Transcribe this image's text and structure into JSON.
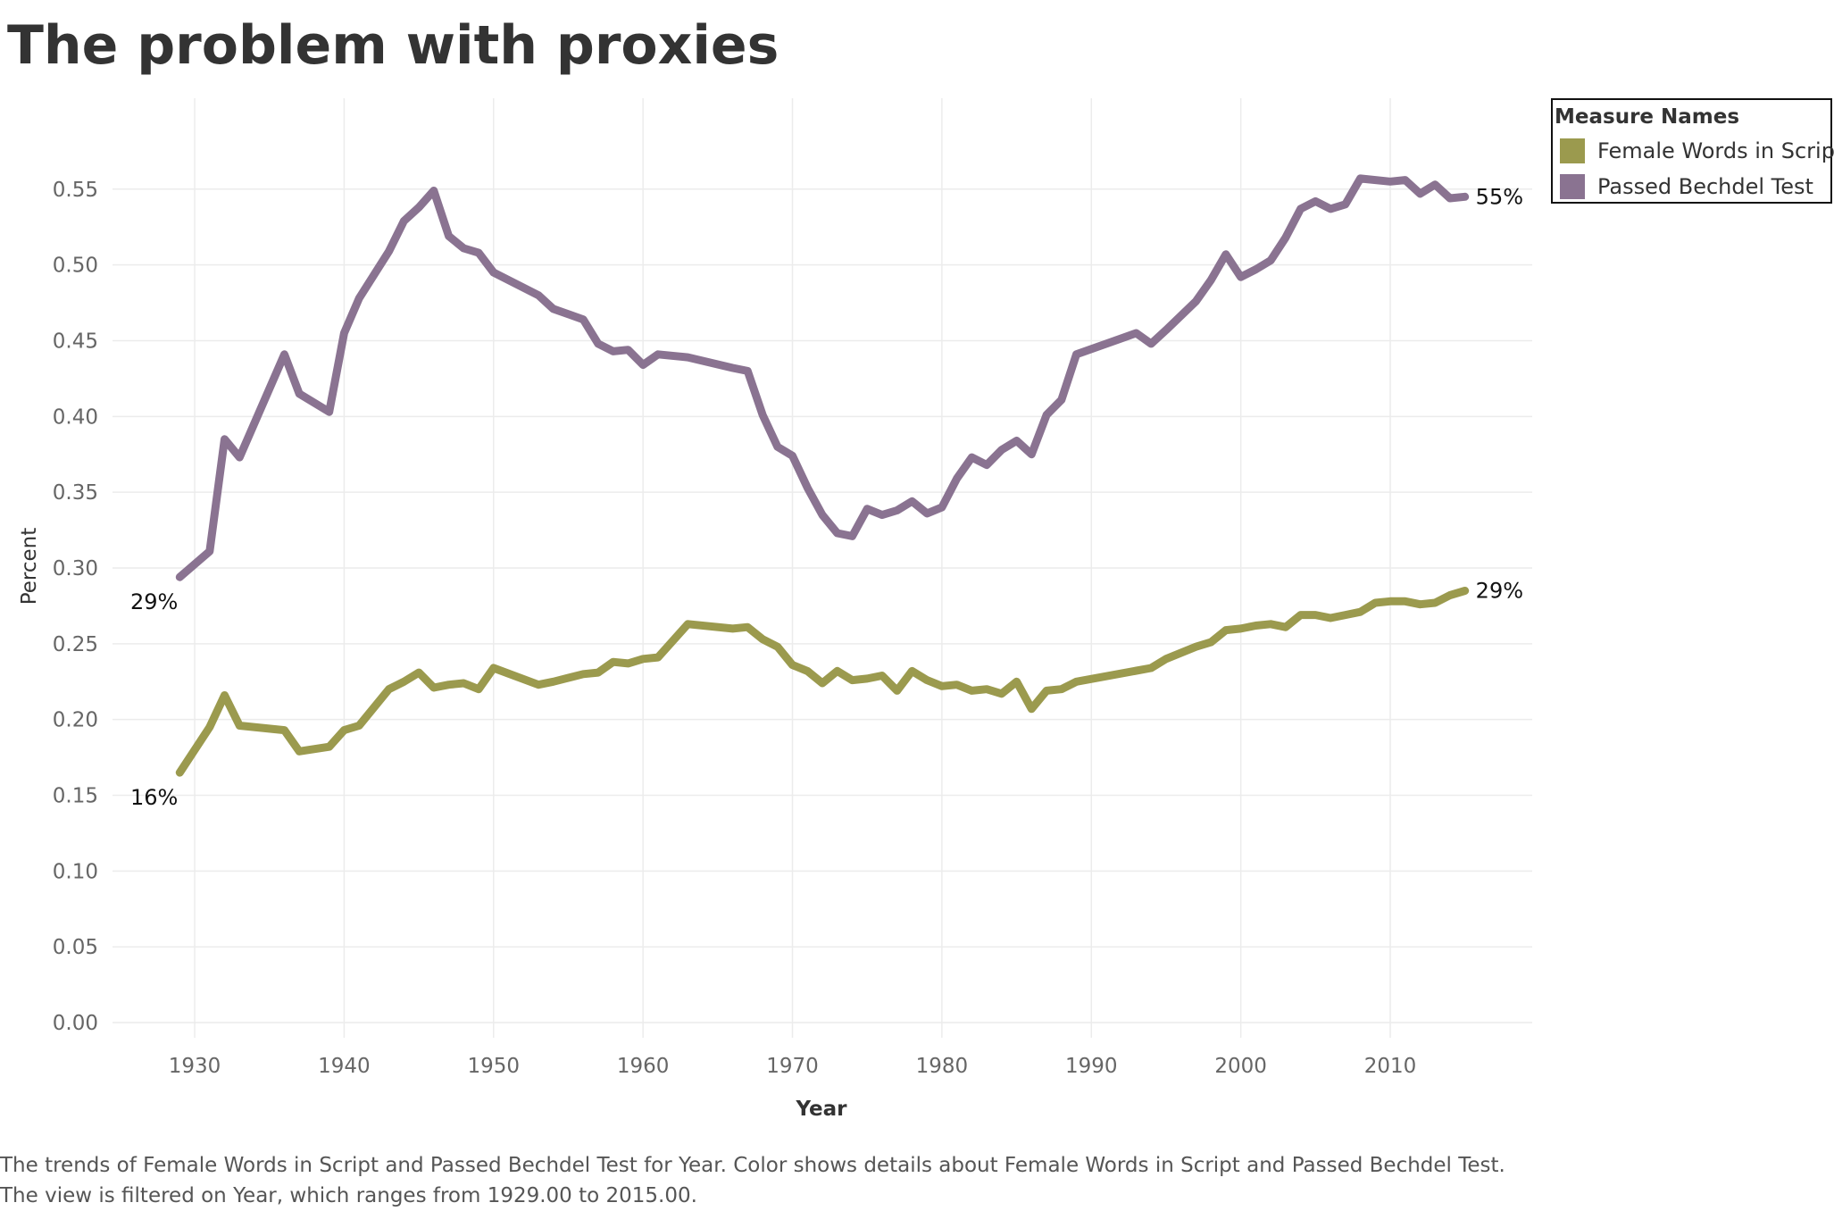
{
  "title": "The problem with proxies",
  "caption": "The trends of Female Words in Script and Passed Bechdel Test for Year.  Color shows details about Female Words in Script and Passed Bechdel Test. The view is filtered on Year, which ranges from 1929.00 to 2015.00.",
  "legend": {
    "title": "Measure Names",
    "items": [
      {
        "label": "Female Words in Script",
        "color": "#9b9a4e"
      },
      {
        "label": "Passed Bechdel Test",
        "color": "#8a7391"
      }
    ]
  },
  "chart_data": {
    "type": "line",
    "xlabel": "Year",
    "ylabel": "Percent",
    "xlim": [
      1924.5,
      2019.5
    ],
    "ylim": [
      -0.01,
      0.61
    ],
    "x_ticks": [
      "1930",
      "1940",
      "1950",
      "1960",
      "1970",
      "1980",
      "1990",
      "2000",
      "2010"
    ],
    "y_ticks": [
      "0.00",
      "0.05",
      "0.10",
      "0.15",
      "0.20",
      "0.25",
      "0.30",
      "0.35",
      "0.40",
      "0.45",
      "0.50",
      "0.55"
    ],
    "grid": true,
    "legend_position": "top-right",
    "series": [
      {
        "name": "Female Words in Script",
        "color": "#9b9a4e",
        "start_label": "16%",
        "end_label": "29%",
        "points": [
          [
            1929,
            0.165
          ],
          [
            1931,
            0.195
          ],
          [
            1932,
            0.216
          ],
          [
            1933,
            0.196
          ],
          [
            1936,
            0.193
          ],
          [
            1937,
            0.179
          ],
          [
            1939,
            0.182
          ],
          [
            1940,
            0.193
          ],
          [
            1941,
            0.196
          ],
          [
            1943,
            0.22
          ],
          [
            1944,
            0.225
          ],
          [
            1945,
            0.231
          ],
          [
            1946,
            0.221
          ],
          [
            1947,
            0.223
          ],
          [
            1948,
            0.224
          ],
          [
            1949,
            0.22
          ],
          [
            1950,
            0.234
          ],
          [
            1953,
            0.223
          ],
          [
            1954,
            0.225
          ],
          [
            1956,
            0.23
          ],
          [
            1957,
            0.231
          ],
          [
            1958,
            0.238
          ],
          [
            1959,
            0.237
          ],
          [
            1960,
            0.24
          ],
          [
            1961,
            0.241
          ],
          [
            1963,
            0.263
          ],
          [
            1966,
            0.26
          ],
          [
            1967,
            0.261
          ],
          [
            1968,
            0.253
          ],
          [
            1969,
            0.248
          ],
          [
            1970,
            0.236
          ],
          [
            1971,
            0.232
          ],
          [
            1972,
            0.224
          ],
          [
            1973,
            0.232
          ],
          [
            1974,
            0.226
          ],
          [
            1975,
            0.227
          ],
          [
            1976,
            0.229
          ],
          [
            1977,
            0.219
          ],
          [
            1978,
            0.232
          ],
          [
            1979,
            0.226
          ],
          [
            1980,
            0.222
          ],
          [
            1981,
            0.223
          ],
          [
            1982,
            0.219
          ],
          [
            1983,
            0.22
          ],
          [
            1984,
            0.217
          ],
          [
            1985,
            0.225
          ],
          [
            1986,
            0.207
          ],
          [
            1987,
            0.219
          ],
          [
            1988,
            0.22
          ],
          [
            1989,
            0.225
          ],
          [
            1994,
            0.234
          ],
          [
            1995,
            0.24
          ],
          [
            1997,
            0.248
          ],
          [
            1998,
            0.251
          ],
          [
            1999,
            0.259
          ],
          [
            2000,
            0.26
          ],
          [
            2001,
            0.262
          ],
          [
            2002,
            0.263
          ],
          [
            2003,
            0.261
          ],
          [
            2004,
            0.269
          ],
          [
            2005,
            0.269
          ],
          [
            2006,
            0.267
          ],
          [
            2007,
            0.269
          ],
          [
            2008,
            0.271
          ],
          [
            2009,
            0.277
          ],
          [
            2010,
            0.278
          ],
          [
            2011,
            0.278
          ],
          [
            2012,
            0.276
          ],
          [
            2013,
            0.277
          ],
          [
            2014,
            0.282
          ],
          [
            2015,
            0.285
          ]
        ]
      },
      {
        "name": "Passed Bechdel Test",
        "color": "#8a7391",
        "start_label": "29%",
        "end_label": "55%",
        "points": [
          [
            1929,
            0.294
          ],
          [
            1931,
            0.311
          ],
          [
            1932,
            0.385
          ],
          [
            1933,
            0.373
          ],
          [
            1936,
            0.441
          ],
          [
            1937,
            0.415
          ],
          [
            1939,
            0.403
          ],
          [
            1940,
            0.455
          ],
          [
            1941,
            0.478
          ],
          [
            1943,
            0.509
          ],
          [
            1944,
            0.529
          ],
          [
            1945,
            0.538
          ],
          [
            1946,
            0.549
          ],
          [
            1947,
            0.519
          ],
          [
            1948,
            0.511
          ],
          [
            1949,
            0.508
          ],
          [
            1950,
            0.495
          ],
          [
            1953,
            0.48
          ],
          [
            1954,
            0.471
          ],
          [
            1956,
            0.464
          ],
          [
            1957,
            0.448
          ],
          [
            1958,
            0.443
          ],
          [
            1959,
            0.444
          ],
          [
            1960,
            0.434
          ],
          [
            1961,
            0.441
          ],
          [
            1963,
            0.439
          ],
          [
            1966,
            0.432
          ],
          [
            1967,
            0.43
          ],
          [
            1968,
            0.401
          ],
          [
            1969,
            0.38
          ],
          [
            1970,
            0.374
          ],
          [
            1971,
            0.353
          ],
          [
            1972,
            0.335
          ],
          [
            1973,
            0.323
          ],
          [
            1974,
            0.321
          ],
          [
            1975,
            0.339
          ],
          [
            1976,
            0.335
          ],
          [
            1977,
            0.338
          ],
          [
            1978,
            0.344
          ],
          [
            1979,
            0.336
          ],
          [
            1980,
            0.34
          ],
          [
            1981,
            0.359
          ],
          [
            1982,
            0.373
          ],
          [
            1983,
            0.368
          ],
          [
            1984,
            0.378
          ],
          [
            1985,
            0.384
          ],
          [
            1986,
            0.375
          ],
          [
            1987,
            0.401
          ],
          [
            1988,
            0.411
          ],
          [
            1989,
            0.441
          ],
          [
            1993,
            0.455
          ],
          [
            1994,
            0.448
          ],
          [
            1995,
            0.457
          ],
          [
            1997,
            0.476
          ],
          [
            1998,
            0.49
          ],
          [
            1999,
            0.507
          ],
          [
            2000,
            0.492
          ],
          [
            2001,
            0.497
          ],
          [
            2002,
            0.503
          ],
          [
            2003,
            0.518
          ],
          [
            2004,
            0.537
          ],
          [
            2005,
            0.542
          ],
          [
            2006,
            0.537
          ],
          [
            2007,
            0.54
          ],
          [
            2008,
            0.557
          ],
          [
            2010,
            0.555
          ],
          [
            2011,
            0.556
          ],
          [
            2012,
            0.547
          ],
          [
            2013,
            0.553
          ],
          [
            2014,
            0.544
          ],
          [
            2015,
            0.545
          ]
        ]
      }
    ]
  }
}
